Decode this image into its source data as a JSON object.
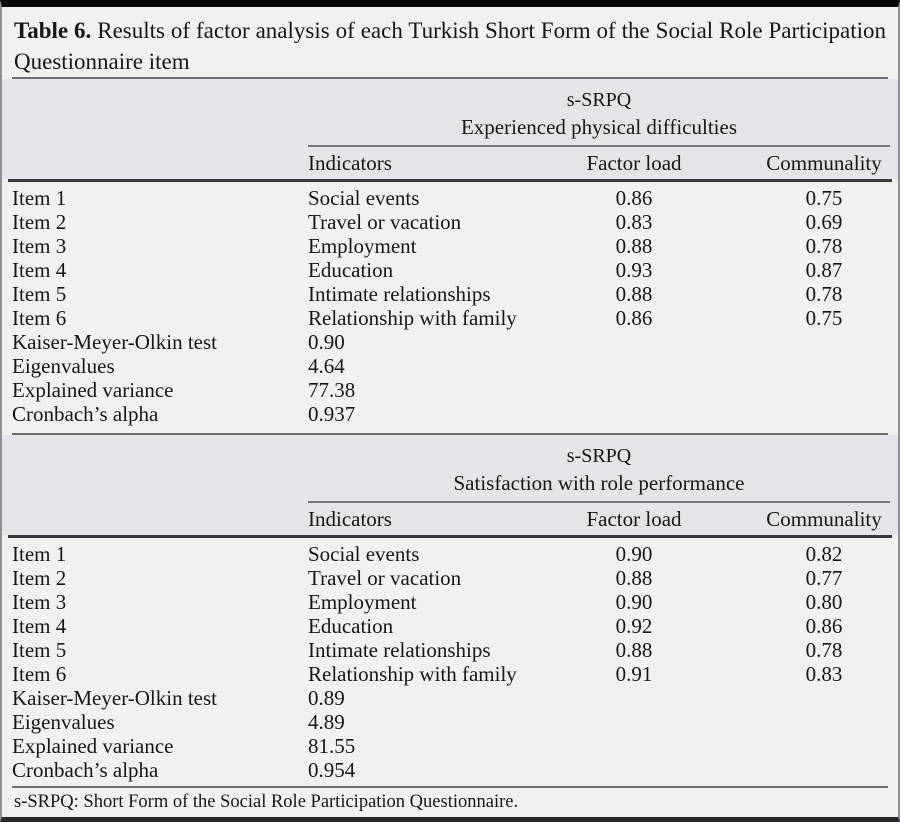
{
  "title": {
    "label": "Table 6.",
    "rest": "Results of factor analysis of each Turkish Short Form of the Social Role Participation Questionnaire item"
  },
  "columns": {
    "indicators": "Indicators",
    "factor_load": "Factor load",
    "communality": "Communality"
  },
  "sections": [
    {
      "group": "s-SRPQ",
      "subtitle": "Experienced physical difficulties",
      "rows": [
        {
          "item": "Item 1",
          "indicator": "Social events",
          "factor_load": "0.86",
          "communality": "0.75"
        },
        {
          "item": "Item 2",
          "indicator": "Travel or vacation",
          "factor_load": "0.83",
          "communality": "0.69"
        },
        {
          "item": "Item 3",
          "indicator": "Employment",
          "factor_load": "0.88",
          "communality": "0.78"
        },
        {
          "item": "Item 4",
          "indicator": "Education",
          "factor_load": "0.93",
          "communality": "0.87"
        },
        {
          "item": "Item 5",
          "indicator": "Intimate relationships",
          "factor_load": "0.88",
          "communality": "0.78"
        },
        {
          "item": "Item 6",
          "indicator": "Relationship with family",
          "factor_load": "0.86",
          "communality": "0.75"
        }
      ],
      "summary": [
        {
          "label": "Kaiser-Meyer-Olkin test",
          "value": "0.90"
        },
        {
          "label": "Eigenvalues",
          "value": "4.64"
        },
        {
          "label": "Explained variance",
          "value": "77.38"
        },
        {
          "label": "Cronbach’s alpha",
          "value": "0.937"
        }
      ]
    },
    {
      "group": "s-SRPQ",
      "subtitle": "Satisfaction with role performance",
      "rows": [
        {
          "item": "Item 1",
          "indicator": "Social events",
          "factor_load": "0.90",
          "communality": "0.82"
        },
        {
          "item": "Item 2",
          "indicator": "Travel or vacation",
          "factor_load": "0.88",
          "communality": "0.77"
        },
        {
          "item": "Item 3",
          "indicator": "Employment",
          "factor_load": "0.90",
          "communality": "0.80"
        },
        {
          "item": "Item 4",
          "indicator": "Education",
          "factor_load": "0.92",
          "communality": "0.86"
        },
        {
          "item": "Item 5",
          "indicator": "Intimate relationships",
          "factor_load": "0.88",
          "communality": "0.78"
        },
        {
          "item": "Item 6",
          "indicator": "Relationship with family",
          "factor_load": "0.91",
          "communality": "0.83"
        }
      ],
      "summary": [
        {
          "label": "Kaiser-Meyer-Olkin test",
          "value": "0.89"
        },
        {
          "label": "Eigenvalues",
          "value": "4.89"
        },
        {
          "label": "Explained variance",
          "value": "81.55"
        },
        {
          "label": "Cronbach’s alpha",
          "value": "0.954"
        }
      ]
    }
  ],
  "footnote": "s-SRPQ: Short Form of the Social Role Participation Questionnaire."
}
